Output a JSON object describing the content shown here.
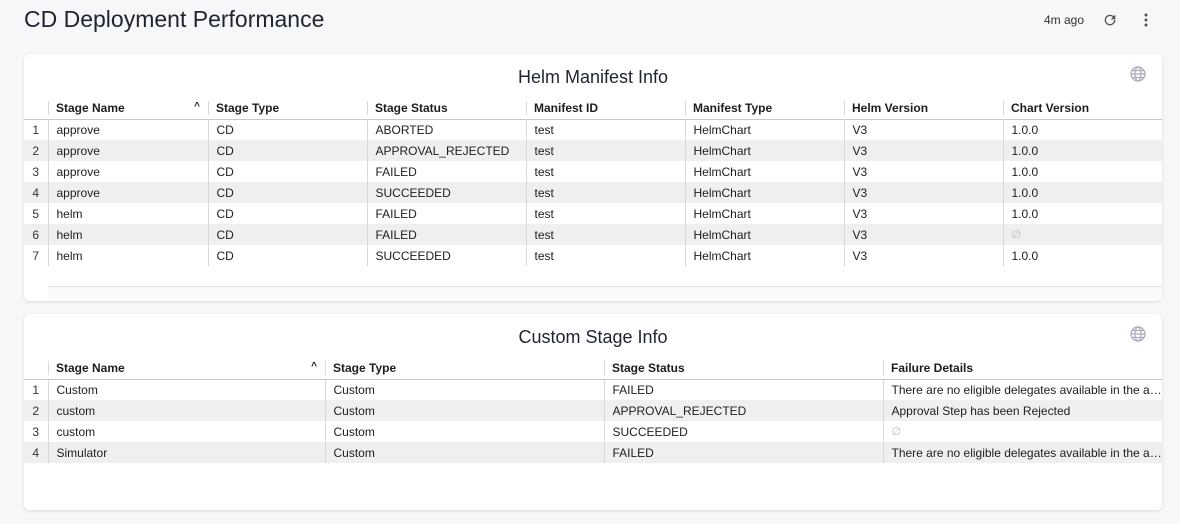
{
  "header": {
    "title": "CD Deployment Performance",
    "last_updated": "4m ago",
    "refresh_icon": "refresh-icon",
    "menu_icon": "more-vert-icon"
  },
  "helm": {
    "title": "Helm Manifest Info",
    "icon": "globe-icon",
    "columns": [
      "Stage Name",
      "Stage Type",
      "Stage Status",
      "Manifest ID",
      "Manifest Type",
      "Helm Version",
      "Chart Version"
    ],
    "rows": [
      [
        "approve",
        "CD",
        "ABORTED",
        "test",
        "HelmChart",
        "V3",
        "1.0.0"
      ],
      [
        "approve",
        "CD",
        "APPROVAL_REJECTED",
        "test",
        "HelmChart",
        "V3",
        "1.0.0"
      ],
      [
        "approve",
        "CD",
        "FAILED",
        "test",
        "HelmChart",
        "V3",
        "1.0.0"
      ],
      [
        "approve",
        "CD",
        "SUCCEEDED",
        "test",
        "HelmChart",
        "V3",
        "1.0.0"
      ],
      [
        "helm",
        "CD",
        "FAILED",
        "test",
        "HelmChart",
        "V3",
        "1.0.0"
      ],
      [
        "helm",
        "CD",
        "FAILED",
        "test",
        "HelmChart",
        "V3",
        "∅"
      ],
      [
        "helm",
        "CD",
        "SUCCEEDED",
        "test",
        "HelmChart",
        "V3",
        "1.0.0"
      ]
    ]
  },
  "custom": {
    "title": "Custom Stage Info",
    "icon": "globe-icon",
    "columns": [
      "Stage Name",
      "Stage Type",
      "Stage Status",
      "Failure Details"
    ],
    "rows": [
      [
        "Custom",
        "Custom",
        "FAILED",
        "There are no eligible delegates available in the account to execute the task"
      ],
      [
        "custom",
        "Custom",
        "APPROVAL_REJECTED",
        "Approval Step has been Rejected"
      ],
      [
        "custom",
        "Custom",
        "SUCCEEDED",
        "∅"
      ],
      [
        "Simulator",
        "Custom",
        "FAILED",
        "There are no eligible delegates available in the account to execute the task"
      ]
    ]
  }
}
